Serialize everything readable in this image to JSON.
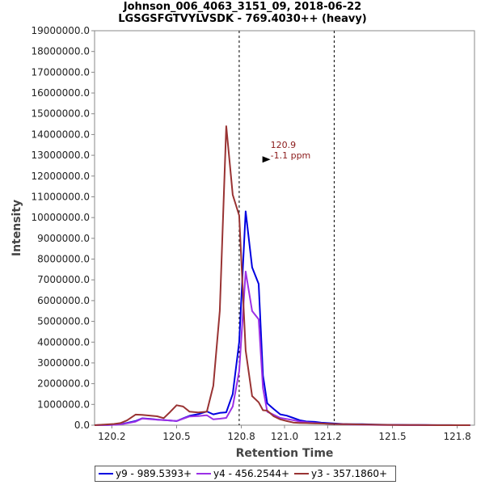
{
  "chart_data": {
    "type": "line",
    "title": "Johnson_006_4063_3151_09, 2018-06-22",
    "subtitle": "LGSGSFGTVYLVSDK - 769.4030++ (heavy)",
    "xlabel": "Retention Time",
    "ylabel": "Intensity",
    "xlim": [
      120.12,
      121.88
    ],
    "ylim": [
      0,
      19000000
    ],
    "x_ticks": [
      120.2,
      120.5,
      120.8,
      121.0,
      121.2,
      121.5,
      121.8
    ],
    "x_tick_labels": [
      "120.2",
      "120.5",
      "120.8",
      "121.0",
      "121.2",
      "121.5",
      "121.8"
    ],
    "y_ticks": [
      0,
      1000000,
      2000000,
      3000000,
      4000000,
      5000000,
      6000000,
      7000000,
      8000000,
      9000000,
      10000000,
      11000000,
      12000000,
      13000000,
      14000000,
      15000000,
      16000000,
      17000000,
      18000000,
      19000000
    ],
    "y_tick_labels": [
      "0.0",
      "1000000.0",
      "2000000.0",
      "3000000.0",
      "4000000.0",
      "5000000.0",
      "6000000.0",
      "7000000.0",
      "8000000.0",
      "9000000.0",
      "10000000.0",
      "11000000.0",
      "12000000.0",
      "13000000.0",
      "14000000.0",
      "15000000.0",
      "16000000.0",
      "17000000.0",
      "18000000.0",
      "19000000.0"
    ],
    "grid": false,
    "vertical_markers": [
      120.79,
      121.23
    ],
    "annotation": {
      "x": 120.92,
      "y": 12800000,
      "lines": [
        "120.9",
        "-1.1 ppm"
      ],
      "color": "#8b1a1a"
    },
    "legend_position": "bottom",
    "x": [
      120.12,
      120.15,
      120.18,
      120.21,
      120.24,
      120.27,
      120.31,
      120.34,
      120.38,
      120.41,
      120.44,
      120.47,
      120.5,
      120.53,
      120.56,
      120.6,
      120.64,
      120.67,
      120.7,
      120.73,
      120.76,
      120.79,
      120.82,
      120.85,
      120.88,
      120.9,
      120.92,
      120.95,
      120.98,
      121.01,
      121.04,
      121.07,
      121.1,
      121.14,
      121.17,
      121.2,
      121.23,
      121.27,
      121.3,
      121.33,
      121.36,
      121.39,
      121.42,
      121.45,
      121.48,
      121.52,
      121.55,
      121.58,
      121.62,
      121.65,
      121.68,
      121.71,
      121.74,
      121.77,
      121.8,
      121.83,
      121.86
    ],
    "series": [
      {
        "name": "y9 - 989.5393+",
        "color": "#0000e0",
        "values": [
          0,
          10000,
          10000,
          20000,
          50000,
          110000,
          200000,
          330000,
          300000,
          270000,
          250000,
          220000,
          200000,
          330000,
          450000,
          530000,
          660000,
          520000,
          590000,
          620000,
          1500000,
          4000000,
          10300000,
          7600000,
          6800000,
          2400000,
          1050000,
          780000,
          520000,
          460000,
          350000,
          240000,
          180000,
          160000,
          120000,
          100000,
          80000,
          60000,
          50000,
          50000,
          45000,
          40000,
          30000,
          25000,
          20000,
          20000,
          15000,
          10000,
          8000,
          6000,
          5000,
          4000,
          3000,
          2000,
          1000,
          0,
          0
        ]
      },
      {
        "name": "y4 - 456.2544+",
        "color": "#9b30e6",
        "values": [
          0,
          5000,
          10000,
          20000,
          40000,
          90000,
          170000,
          320000,
          290000,
          260000,
          240000,
          230000,
          200000,
          310000,
          420000,
          440000,
          480000,
          280000,
          310000,
          350000,
          900000,
          2600000,
          7400000,
          5500000,
          5100000,
          1800000,
          650000,
          500000,
          350000,
          300000,
          240000,
          180000,
          140000,
          110000,
          90000,
          70000,
          55000,
          45000,
          35000,
          30000,
          25000,
          20000,
          15000,
          10000,
          8000,
          6000,
          5000,
          4000,
          3000,
          2000,
          1000,
          0,
          0,
          0,
          0,
          0,
          0
        ]
      },
      {
        "name": "y3 - 357.1860+",
        "color": "#993333",
        "values": [
          0,
          20000,
          40000,
          60000,
          100000,
          230000,
          510000,
          500000,
          460000,
          430000,
          340000,
          640000,
          960000,
          900000,
          650000,
          610000,
          650000,
          1900000,
          5500000,
          14400000,
          11100000,
          10100000,
          3600000,
          1400000,
          1100000,
          720000,
          700000,
          430000,
          280000,
          200000,
          130000,
          110000,
          100000,
          90000,
          80000,
          70000,
          60000,
          50000,
          45000,
          40000,
          35000,
          30000,
          25000,
          20000,
          15000,
          12000,
          10000,
          8000,
          6000,
          4000,
          2000,
          1000,
          0,
          0,
          0,
          0,
          0
        ]
      }
    ]
  }
}
